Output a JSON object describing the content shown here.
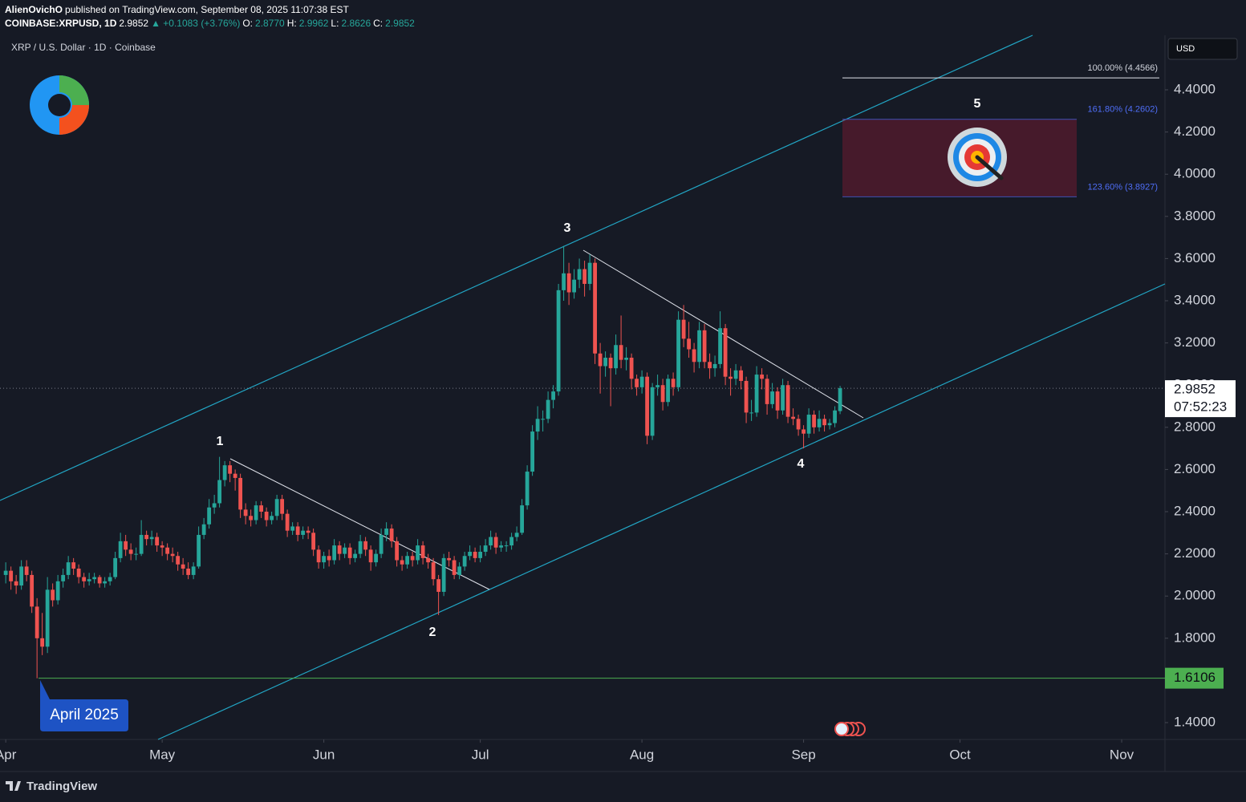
{
  "header": {
    "publisher": "AlienOvichO",
    "published": "published on TradingView.com, September 08, 2025 11:07:38 EST",
    "symbol": "COINBASE:XRPUSD, 1D",
    "last": "2.9852",
    "change": "▲ +0.1083 (+3.76%)",
    "open_label": "O:",
    "open": "2.8770",
    "high_label": "H:",
    "high": "2.9962",
    "low_label": "L:",
    "low": "2.8626",
    "close_label": "C:",
    "close": "2.9852"
  },
  "footer": {
    "brand": "TradingView"
  },
  "chart_data": {
    "type": "candlestick",
    "title": "XRP / U.S. Dollar · 1D · Coinbase",
    "currency": "USD",
    "up_color": "#26a69a",
    "down_color": "#ef5350",
    "ohlc": [
      [
        2.1,
        2.16,
        2.06,
        2.12
      ],
      [
        2.12,
        2.14,
        2.03,
        2.07
      ],
      [
        2.07,
        2.1,
        2.01,
        2.05
      ],
      [
        2.05,
        2.17,
        2.03,
        2.14
      ],
      [
        2.14,
        2.17,
        2.07,
        2.1
      ],
      [
        2.1,
        2.12,
        1.92,
        1.95
      ],
      [
        1.95,
        1.99,
        1.61,
        1.8
      ],
      [
        1.8,
        1.92,
        1.72,
        1.76
      ],
      [
        1.76,
        2.09,
        1.73,
        2.03
      ],
      [
        2.03,
        2.06,
        1.95,
        1.98
      ],
      [
        1.98,
        2.1,
        1.96,
        2.07
      ],
      [
        2.07,
        2.13,
        2.04,
        2.1
      ],
      [
        2.1,
        2.19,
        2.08,
        2.16
      ],
      [
        2.16,
        2.18,
        2.1,
        2.13
      ],
      [
        2.13,
        2.15,
        2.06,
        2.09
      ],
      [
        2.09,
        2.11,
        2.04,
        2.07
      ],
      [
        2.07,
        2.11,
        2.05,
        2.08
      ],
      [
        2.08,
        2.11,
        2.06,
        2.09
      ],
      [
        2.09,
        2.1,
        2.04,
        2.06
      ],
      [
        2.06,
        2.09,
        2.04,
        2.07
      ],
      [
        2.07,
        2.11,
        2.05,
        2.09
      ],
      [
        2.09,
        2.21,
        2.08,
        2.18
      ],
      [
        2.18,
        2.3,
        2.16,
        2.26
      ],
      [
        2.26,
        2.29,
        2.19,
        2.22
      ],
      [
        2.22,
        2.25,
        2.17,
        2.2
      ],
      [
        2.2,
        2.23,
        2.17,
        2.2
      ],
      [
        2.2,
        2.36,
        2.19,
        2.29
      ],
      [
        2.29,
        2.31,
        2.24,
        2.27
      ],
      [
        2.27,
        2.31,
        2.24,
        2.28
      ],
      [
        2.28,
        2.3,
        2.21,
        2.24
      ],
      [
        2.24,
        2.26,
        2.19,
        2.23
      ],
      [
        2.23,
        2.25,
        2.17,
        2.2
      ],
      [
        2.2,
        2.23,
        2.16,
        2.19
      ],
      [
        2.19,
        2.21,
        2.12,
        2.15
      ],
      [
        2.15,
        2.18,
        2.1,
        2.13
      ],
      [
        2.13,
        2.16,
        2.08,
        2.1
      ],
      [
        2.1,
        2.16,
        2.08,
        2.14
      ],
      [
        2.14,
        2.33,
        2.13,
        2.29
      ],
      [
        2.29,
        2.37,
        2.27,
        2.34
      ],
      [
        2.34,
        2.46,
        2.32,
        2.42
      ],
      [
        2.42,
        2.48,
        2.39,
        2.44
      ],
      [
        2.44,
        2.66,
        2.42,
        2.55
      ],
      [
        2.55,
        2.64,
        2.52,
        2.62
      ],
      [
        2.62,
        2.64,
        2.54,
        2.58
      ],
      [
        2.58,
        2.6,
        2.5,
        2.56
      ],
      [
        2.56,
        2.58,
        2.37,
        2.41
      ],
      [
        2.41,
        2.44,
        2.34,
        2.38
      ],
      [
        2.38,
        2.41,
        2.33,
        2.36
      ],
      [
        2.36,
        2.45,
        2.34,
        2.43
      ],
      [
        2.43,
        2.45,
        2.37,
        2.4
      ],
      [
        2.4,
        2.42,
        2.33,
        2.36
      ],
      [
        2.36,
        2.4,
        2.34,
        2.38
      ],
      [
        2.38,
        2.48,
        2.36,
        2.46
      ],
      [
        2.46,
        2.48,
        2.36,
        2.39
      ],
      [
        2.39,
        2.41,
        2.28,
        2.31
      ],
      [
        2.31,
        2.35,
        2.29,
        2.33
      ],
      [
        2.33,
        2.35,
        2.26,
        2.29
      ],
      [
        2.29,
        2.33,
        2.27,
        2.31
      ],
      [
        2.31,
        2.33,
        2.27,
        2.3
      ],
      [
        2.3,
        2.32,
        2.19,
        2.22
      ],
      [
        2.22,
        2.24,
        2.13,
        2.16
      ],
      [
        2.16,
        2.21,
        2.13,
        2.19
      ],
      [
        2.19,
        2.22,
        2.14,
        2.17
      ],
      [
        2.17,
        2.27,
        2.15,
        2.24
      ],
      [
        2.24,
        2.26,
        2.17,
        2.2
      ],
      [
        2.2,
        2.25,
        2.18,
        2.23
      ],
      [
        2.23,
        2.25,
        2.15,
        2.18
      ],
      [
        2.18,
        2.22,
        2.16,
        2.2
      ],
      [
        2.2,
        2.29,
        2.18,
        2.26
      ],
      [
        2.26,
        2.28,
        2.19,
        2.22
      ],
      [
        2.22,
        2.24,
        2.12,
        2.16
      ],
      [
        2.16,
        2.22,
        2.14,
        2.2
      ],
      [
        2.2,
        2.32,
        2.18,
        2.29
      ],
      [
        2.29,
        2.35,
        2.26,
        2.32
      ],
      [
        2.32,
        2.34,
        2.23,
        2.26
      ],
      [
        2.26,
        2.28,
        2.14,
        2.17
      ],
      [
        2.17,
        2.19,
        2.12,
        2.15
      ],
      [
        2.15,
        2.21,
        2.13,
        2.19
      ],
      [
        2.19,
        2.21,
        2.14,
        2.17
      ],
      [
        2.17,
        2.27,
        2.15,
        2.24
      ],
      [
        2.24,
        2.26,
        2.15,
        2.18
      ],
      [
        2.18,
        2.2,
        2.13,
        2.16
      ],
      [
        2.16,
        2.18,
        2.05,
        2.08
      ],
      [
        2.08,
        2.1,
        1.91,
        2.02
      ],
      [
        2.02,
        2.2,
        2.0,
        2.18
      ],
      [
        2.18,
        2.21,
        2.14,
        2.17
      ],
      [
        2.17,
        2.19,
        2.08,
        2.1
      ],
      [
        2.1,
        2.16,
        2.08,
        2.14
      ],
      [
        2.14,
        2.21,
        2.12,
        2.19
      ],
      [
        2.19,
        2.24,
        2.17,
        2.21
      ],
      [
        2.21,
        2.23,
        2.16,
        2.18
      ],
      [
        2.18,
        2.24,
        2.16,
        2.21
      ],
      [
        2.21,
        2.27,
        2.19,
        2.24
      ],
      [
        2.24,
        2.31,
        2.22,
        2.28
      ],
      [
        2.28,
        2.3,
        2.2,
        2.23
      ],
      [
        2.23,
        2.26,
        2.21,
        2.24
      ],
      [
        2.24,
        2.26,
        2.21,
        2.24
      ],
      [
        2.24,
        2.3,
        2.22,
        2.28
      ],
      [
        2.28,
        2.33,
        2.26,
        2.3
      ],
      [
        2.3,
        2.46,
        2.29,
        2.43
      ],
      [
        2.43,
        2.62,
        2.41,
        2.59
      ],
      [
        2.59,
        2.81,
        2.57,
        2.78
      ],
      [
        2.78,
        2.9,
        2.74,
        2.84
      ],
      [
        2.84,
        2.88,
        2.78,
        2.84
      ],
      [
        2.84,
        2.97,
        2.82,
        2.93
      ],
      [
        2.93,
        3.0,
        2.89,
        2.97
      ],
      [
        2.97,
        3.48,
        2.95,
        3.45
      ],
      [
        3.45,
        3.66,
        3.4,
        3.53
      ],
      [
        3.53,
        3.58,
        3.38,
        3.44
      ],
      [
        3.44,
        3.55,
        3.41,
        3.5
      ],
      [
        3.5,
        3.6,
        3.46,
        3.55
      ],
      [
        3.55,
        3.59,
        3.42,
        3.48
      ],
      [
        3.48,
        3.62,
        3.45,
        3.58
      ],
      [
        3.58,
        3.6,
        3.1,
        3.15
      ],
      [
        3.15,
        3.2,
        2.96,
        3.09
      ],
      [
        3.09,
        3.16,
        3.04,
        3.13
      ],
      [
        3.13,
        3.15,
        2.9,
        3.08
      ],
      [
        3.08,
        3.24,
        3.05,
        3.19
      ],
      [
        3.19,
        3.33,
        3.08,
        3.12
      ],
      [
        3.12,
        3.18,
        3.07,
        3.13
      ],
      [
        3.13,
        3.15,
        2.98,
        3.03
      ],
      [
        3.03,
        3.05,
        2.95,
        2.99
      ],
      [
        2.99,
        3.07,
        2.96,
        3.04
      ],
      [
        3.04,
        3.06,
        2.72,
        2.76
      ],
      [
        2.76,
        3.01,
        2.74,
        2.99
      ],
      [
        2.99,
        3.05,
        2.95,
        3.0
      ],
      [
        3.0,
        3.03,
        2.88,
        2.92
      ],
      [
        2.92,
        3.05,
        2.9,
        3.03
      ],
      [
        3.03,
        3.06,
        2.95,
        2.99
      ],
      [
        2.99,
        3.35,
        2.97,
        3.31
      ],
      [
        3.31,
        3.38,
        3.18,
        3.22
      ],
      [
        3.22,
        3.3,
        3.13,
        3.17
      ],
      [
        3.17,
        3.2,
        3.06,
        3.11
      ],
      [
        3.11,
        3.3,
        3.08,
        3.26
      ],
      [
        3.26,
        3.29,
        3.08,
        3.11
      ],
      [
        3.11,
        3.15,
        3.03,
        3.08
      ],
      [
        3.08,
        3.14,
        3.04,
        3.1
      ],
      [
        3.1,
        3.35,
        3.08,
        3.27
      ],
      [
        3.27,
        3.29,
        3.0,
        3.04
      ],
      [
        3.04,
        3.08,
        2.95,
        3.03
      ],
      [
        3.03,
        3.1,
        3.0,
        3.07
      ],
      [
        3.07,
        3.09,
        2.98,
        3.02
      ],
      [
        3.02,
        3.04,
        2.82,
        2.87
      ],
      [
        2.87,
        2.93,
        2.83,
        2.87
      ],
      [
        2.87,
        3.09,
        2.85,
        3.05
      ],
      [
        3.05,
        3.08,
        2.98,
        3.03
      ],
      [
        3.03,
        3.05,
        2.86,
        2.91
      ],
      [
        2.91,
        3.01,
        2.89,
        2.97
      ],
      [
        2.97,
        2.99,
        2.84,
        2.88
      ],
      [
        2.88,
        3.03,
        2.86,
        3.0
      ],
      [
        3.0,
        3.02,
        2.82,
        2.85
      ],
      [
        2.85,
        2.89,
        2.81,
        2.84
      ],
      [
        2.84,
        2.86,
        2.76,
        2.79
      ],
      [
        2.79,
        2.81,
        2.7,
        2.77
      ],
      [
        2.77,
        2.89,
        2.75,
        2.86
      ],
      [
        2.86,
        2.88,
        2.77,
        2.8
      ],
      [
        2.8,
        2.88,
        2.78,
        2.84
      ],
      [
        2.84,
        2.86,
        2.78,
        2.81
      ],
      [
        2.81,
        2.84,
        2.79,
        2.82
      ],
      [
        2.82,
        2.9,
        2.8,
        2.88
      ],
      [
        2.877,
        2.9962,
        2.8626,
        2.9852
      ]
    ],
    "xlim": [
      -1.1,
      222.3
    ],
    "xticks": [
      {
        "value": 0,
        "label": "Apr"
      },
      {
        "value": 30,
        "label": "May"
      },
      {
        "value": 61,
        "label": "Jun"
      },
      {
        "value": 91,
        "label": "Jul"
      },
      {
        "value": 122,
        "label": "Aug"
      },
      {
        "value": 153,
        "label": "Sep"
      },
      {
        "value": 183,
        "label": "Oct"
      },
      {
        "value": 214,
        "label": "Nov"
      }
    ],
    "ylim": [
      1.3202,
      4.6586
    ],
    "yticks": [
      {
        "value": 1.4,
        "label": "1.4000"
      },
      {
        "value": 1.6,
        "label": "1.6000"
      },
      {
        "value": 1.8,
        "label": "1.8000"
      },
      {
        "value": 2.0,
        "label": "2.0000"
      },
      {
        "value": 2.2,
        "label": "2.2000"
      },
      {
        "value": 2.4,
        "label": "2.4000"
      },
      {
        "value": 2.6,
        "label": "2.6000"
      },
      {
        "value": 2.8,
        "label": "2.8000"
      },
      {
        "value": 3.0,
        "label": "3.0000"
      },
      {
        "value": 3.2,
        "label": "3.2000"
      },
      {
        "value": 3.4,
        "label": "3.4000"
      },
      {
        "value": 3.6,
        "label": "3.6000"
      },
      {
        "value": 3.8,
        "label": "3.8000"
      },
      {
        "value": 4.0,
        "label": "4.0000"
      },
      {
        "value": 4.2,
        "label": "4.2000"
      },
      {
        "value": 4.4,
        "label": "4.4000"
      }
    ],
    "last_price": {
      "value": 2.9852,
      "label": "2.9852"
    },
    "countdown": "07:52:23",
    "support": {
      "value": 1.6106,
      "label": "1.6106",
      "color": "#4caf50"
    },
    "fib": [
      {
        "value": 4.4566,
        "label": "100.00% (4.4566)"
      },
      {
        "value": 4.2602,
        "label": "161.80% (4.2602)"
      },
      {
        "value": 3.8927,
        "label": "123.60% (3.8927)"
      }
    ],
    "waves": [
      "1",
      "2",
      "3",
      "4",
      "5"
    ],
    "callout": "April 2025"
  }
}
